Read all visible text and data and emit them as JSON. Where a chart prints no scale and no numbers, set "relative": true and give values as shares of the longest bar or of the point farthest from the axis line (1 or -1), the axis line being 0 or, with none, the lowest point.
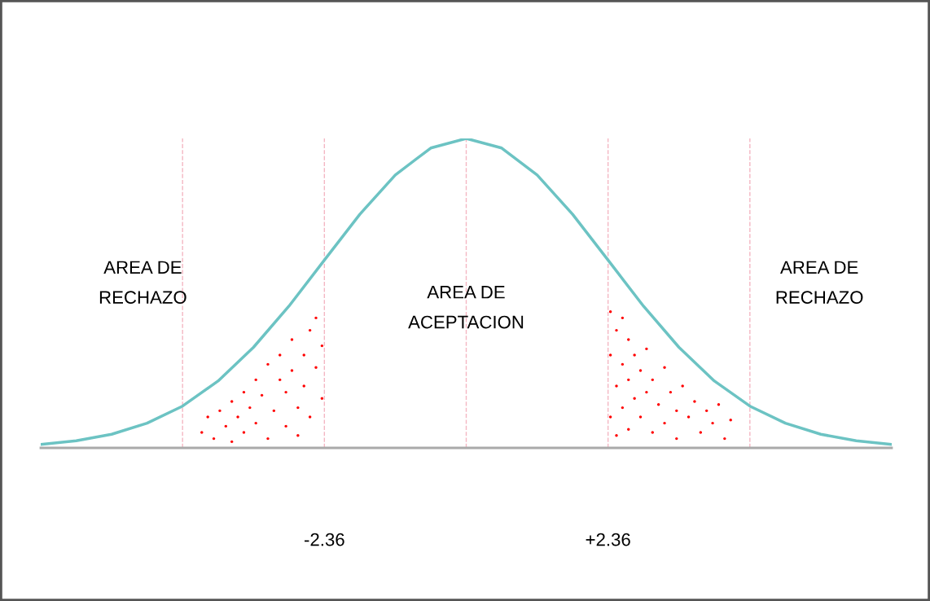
{
  "chart_data": {
    "type": "line",
    "relative": true,
    "xlim": [
      -7.08,
      7.08
    ],
    "xticks": [
      {
        "value": -2.36,
        "label": "-2.36"
      },
      {
        "value": 2.36,
        "label": "+2.36"
      }
    ],
    "annotations": [
      "AREA DE\nRECHAZO",
      "AREA DE\nACEPTACION",
      "AREA DE\nRECHAZO"
    ],
    "ref_lines": [
      {
        "axis": "x",
        "value": -4.72,
        "color": "#f4b6c2",
        "line_style": "dashed"
      },
      {
        "axis": "x",
        "value": -2.36,
        "color": "#f4b6c2",
        "line_style": "dashed"
      },
      {
        "axis": "x",
        "value": 0,
        "color": "#f4b6c2",
        "line_style": "dashed"
      },
      {
        "axis": "x",
        "value": 2.36,
        "color": "#f4b6c2",
        "line_style": "dashed"
      },
      {
        "axis": "x",
        "value": 4.72,
        "color": "#f4b6c2",
        "line_style": "dashed"
      }
    ],
    "grid": false,
    "legend": false,
    "series": [
      {
        "color": "#6cc3c3",
        "x": [
          -7.08,
          -6.49,
          -5.9,
          -5.31,
          -4.72,
          -4.13,
          -3.54,
          -2.95,
          -2.36,
          -1.77,
          -1.18,
          -0.59,
          0,
          0.59,
          1.18,
          1.77,
          2.36,
          2.95,
          3.54,
          4.13,
          4.72,
          5.31,
          5.9,
          6.49,
          7.08
        ],
        "values": [
          0.011,
          0.023,
          0.044,
          0.08,
          0.135,
          0.216,
          0.325,
          0.458,
          0.607,
          0.755,
          0.882,
          0.969,
          1,
          0.969,
          0.882,
          0.755,
          0.607,
          0.458,
          0.325,
          0.216,
          0.135,
          0.08,
          0.044,
          0.023,
          0.011
        ]
      },
      {
        "type": "scatter",
        "color": "#ff0000",
        "x": [
          -4.4,
          -4.3,
          -4.2,
          -4.1,
          -4.0,
          -3.9,
          -3.9,
          -3.8,
          -3.7,
          -3.7,
          -3.6,
          -3.5,
          -3.5,
          -3.4,
          -3.3,
          -3.3,
          -3.2,
          -3.1,
          -3.1,
          -3.0,
          -3.0,
          -2.9,
          -2.9,
          -2.8,
          -2.8,
          -2.7,
          -2.7,
          -2.6,
          -2.6,
          -2.5,
          -2.5,
          -2.4,
          -2.4
        ],
        "values": [
          0.05,
          0.1,
          0.03,
          0.12,
          0.07,
          0.15,
          0.02,
          0.1,
          0.18,
          0.05,
          0.13,
          0.22,
          0.08,
          0.17,
          0.27,
          0.03,
          0.12,
          0.22,
          0.3,
          0.07,
          0.18,
          0.35,
          0.25,
          0.13,
          0.04,
          0.3,
          0.2,
          0.38,
          0.1,
          0.26,
          0.42,
          0.33,
          0.16
        ]
      },
      {
        "type": "scatter",
        "color": "#ff0000",
        "x": [
          2.4,
          2.4,
          2.4,
          2.5,
          2.5,
          2.5,
          2.6,
          2.6,
          2.6,
          2.7,
          2.7,
          2.7,
          2.8,
          2.8,
          2.9,
          2.9,
          3.0,
          3.0,
          3.1,
          3.1,
          3.2,
          3.3,
          3.3,
          3.4,
          3.5,
          3.5,
          3.6,
          3.7,
          3.8,
          3.9,
          4.0,
          4.1,
          4.2,
          4.3,
          4.4
        ],
        "values": [
          0.44,
          0.3,
          0.1,
          0.38,
          0.2,
          0.04,
          0.42,
          0.27,
          0.13,
          0.35,
          0.22,
          0.06,
          0.3,
          0.16,
          0.25,
          0.1,
          0.32,
          0.18,
          0.05,
          0.22,
          0.14,
          0.26,
          0.08,
          0.18,
          0.03,
          0.12,
          0.2,
          0.1,
          0.15,
          0.05,
          0.12,
          0.08,
          0.14,
          0.03,
          0.09
        ]
      }
    ]
  }
}
